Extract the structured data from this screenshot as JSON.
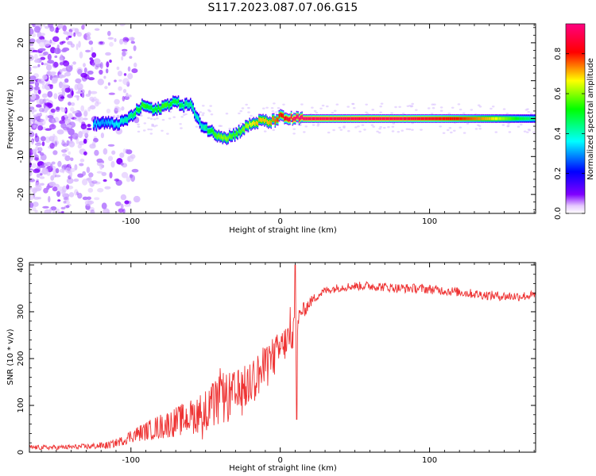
{
  "title": "S117.2023.087.07.06.G15",
  "chart_data": [
    {
      "type": "heatmap",
      "name": "spectrogram",
      "xlabel": "Height of straight line (km)",
      "ylabel": "Frequency (Hz)",
      "xlim": [
        -168,
        171
      ],
      "ylim": [
        -25,
        25
      ],
      "xticks": [
        -100,
        0,
        100
      ],
      "yticks": [
        -20,
        -10,
        0,
        10,
        20
      ],
      "xtick_labels": [
        "-100",
        "0",
        "100"
      ],
      "ytick_labels": [
        "-20",
        "-10",
        "0",
        "10",
        "20"
      ],
      "colorbar": {
        "label": "Normalized spectral amplitude",
        "range": [
          0,
          0.95
        ],
        "ticks": [
          0.0,
          0.2,
          0.4,
          0.6,
          0.8
        ],
        "tick_labels": [
          "0.0",
          "0.2",
          "0.4",
          "0.6",
          "0.8"
        ],
        "colors": [
          "#ffffff",
          "#8000ff",
          "#0000ff",
          "#00ffff",
          "#00ff00",
          "#ffff00",
          "#ff0000",
          "#ff0080"
        ]
      },
      "ridge": {
        "x": [
          -125,
          -118,
          -112,
          -106,
          -100,
          -96,
          -92,
          -88,
          -84,
          -80,
          -76,
          -72,
          -68,
          -64,
          -60,
          -56,
          -52,
          -48,
          -44,
          -40,
          -36,
          -32,
          -28,
          -24,
          -20,
          -16,
          -12,
          -8,
          -4,
          0,
          4,
          8,
          12,
          20,
          40,
          60,
          80,
          100,
          120,
          140,
          160,
          171
        ],
        "freq": [
          -1.5,
          -1.0,
          -1.5,
          -1.0,
          0.5,
          2,
          3.5,
          3,
          2,
          3,
          3.5,
          4.5,
          4,
          3.5,
          4,
          0,
          -2,
          -3,
          -4,
          -4.5,
          -5,
          -4.5,
          -3.5,
          -2.5,
          -1.5,
          -1,
          -0.5,
          -1,
          -0.5,
          0.5,
          0,
          0,
          0,
          0,
          0,
          0,
          0,
          0,
          0,
          0,
          0,
          0
        ],
        "amplitude": [
          0.35,
          0.3,
          0.35,
          0.4,
          0.45,
          0.5,
          0.55,
          0.5,
          0.5,
          0.55,
          0.55,
          0.5,
          0.5,
          0.45,
          0.45,
          0.4,
          0.4,
          0.5,
          0.55,
          0.6,
          0.6,
          0.55,
          0.55,
          0.6,
          0.65,
          0.7,
          0.7,
          0.7,
          0.75,
          0.8,
          0.85,
          0.9,
          0.95,
          0.92,
          0.9,
          0.9,
          0.9,
          0.85,
          0.8,
          0.7,
          0.5,
          0.45
        ]
      }
    },
    {
      "type": "line",
      "name": "snr",
      "xlabel": "Height of straight line (km)",
      "ylabel": "SNR (10 * v/v)",
      "xlim": [
        -168,
        171
      ],
      "ylim": [
        0,
        405
      ],
      "xticks": [
        -100,
        0,
        100
      ],
      "yticks": [
        0,
        100,
        200,
        300,
        400
      ],
      "xtick_labels": [
        "-100",
        "0",
        "100"
      ],
      "ytick_labels": [
        "0",
        "100",
        "200",
        "300",
        "400"
      ],
      "series": [
        {
          "name": "SNR",
          "color": "#ee3333",
          "x": [
            -168,
            -150,
            -130,
            -115,
            -105,
            -100,
            -90,
            -80,
            -70,
            -60,
            -50,
            -45,
            -40,
            -35,
            -30,
            -25,
            -20,
            -15,
            -10,
            -5,
            0,
            5,
            8,
            10,
            12,
            15,
            20,
            25,
            30,
            40,
            50,
            60,
            70,
            80,
            90,
            100,
            110,
            120,
            130,
            140,
            150,
            160,
            171
          ],
          "mean": [
            10,
            10,
            12,
            15,
            25,
            35,
            45,
            55,
            65,
            75,
            90,
            100,
            110,
            115,
            120,
            130,
            150,
            165,
            180,
            200,
            220,
            240,
            250,
            260,
            280,
            300,
            320,
            335,
            345,
            352,
            355,
            355,
            353,
            350,
            350,
            348,
            345,
            342,
            338,
            335,
            333,
            333,
            335
          ],
          "noise": [
            5,
            5,
            6,
            8,
            10,
            15,
            20,
            28,
            32,
            38,
            45,
            50,
            55,
            55,
            55,
            52,
            50,
            50,
            48,
            45,
            40,
            38,
            35,
            30,
            25,
            18,
            12,
            10,
            9,
            9,
            9,
            10,
            10,
            10,
            10,
            10,
            10,
            10,
            10,
            10,
            10,
            10,
            10
          ]
        }
      ]
    }
  ]
}
